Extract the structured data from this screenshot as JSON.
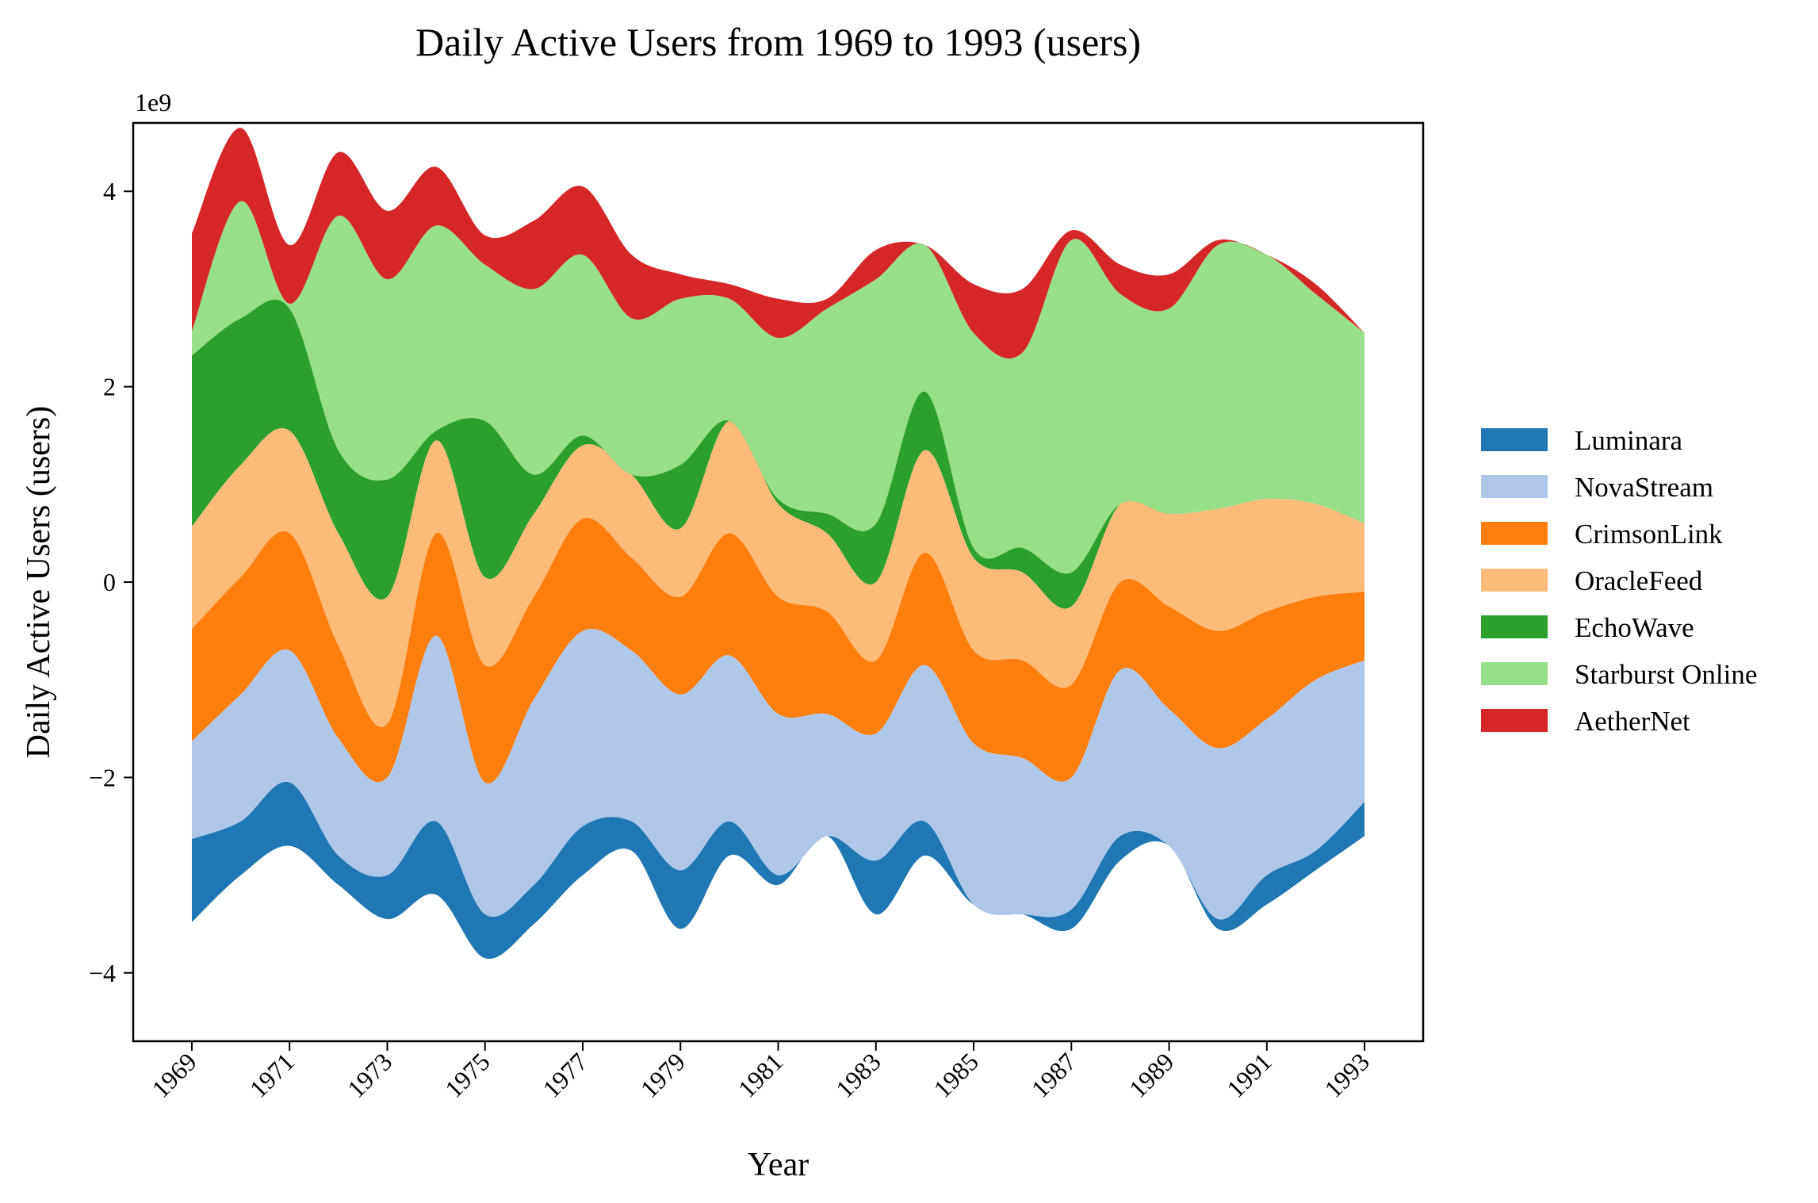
{
  "chart_data": {
    "type": "area",
    "subtype": "streamgraph",
    "title": "Daily Active Users from 1969 to 1993 (users)",
    "xlabel": "Year",
    "ylabel": "Daily Active Users (users)",
    "y_offset_label": "1e9",
    "xlim": [
      1967.8,
      1994.2
    ],
    "ylim": [
      -4.7,
      4.7
    ],
    "x": [
      1969,
      1970,
      1971,
      1972,
      1973,
      1974,
      1975,
      1976,
      1977,
      1978,
      1979,
      1980,
      1981,
      1982,
      1983,
      1984,
      1985,
      1986,
      1987,
      1988,
      1989,
      1990,
      1991,
      1992,
      1993
    ],
    "x_ticks": [
      1969,
      1971,
      1973,
      1975,
      1977,
      1979,
      1981,
      1983,
      1985,
      1987,
      1989,
      1991,
      1993
    ],
    "x_tick_labels": [
      "1969",
      "1971",
      "1973",
      "1975",
      "1977",
      "1979",
      "1981",
      "1983",
      "1985",
      "1987",
      "1989",
      "1991",
      "1993"
    ],
    "y_ticks": [
      -4,
      -2,
      0,
      2,
      4
    ],
    "y_tick_labels": [
      "−4",
      "−2",
      "0",
      "2",
      "4"
    ],
    "baseline": [
      -3.48,
      -3.0,
      -2.7,
      -3.1,
      -3.45,
      -3.2,
      -3.85,
      -3.5,
      -3.0,
      -2.75,
      -3.55,
      -2.8,
      -3.1,
      -2.6,
      -3.4,
      -2.8,
      -3.3,
      -3.4,
      -3.55,
      -2.85,
      -2.7,
      -3.55,
      -3.3,
      -2.95,
      -2.6
    ],
    "series": [
      {
        "name": "Luminara",
        "color": "#1f77b4",
        "values": [
          0.85,
          0.55,
          0.65,
          0.3,
          0.45,
          0.75,
          0.45,
          0.4,
          0.5,
          0.3,
          0.6,
          0.35,
          0.1,
          0.0,
          0.55,
          0.35,
          0.0,
          0.0,
          0.2,
          0.25,
          0.0,
          0.1,
          0.3,
          0.2,
          0.35
        ]
      },
      {
        "name": "NovaStream",
        "color": "#aec7e8",
        "values": [
          1.0,
          1.3,
          1.35,
          1.2,
          1.0,
          1.9,
          1.35,
          1.9,
          2.0,
          1.75,
          1.8,
          1.7,
          1.65,
          1.25,
          1.3,
          1.6,
          1.65,
          1.6,
          1.35,
          1.7,
          1.4,
          1.75,
          1.6,
          1.75,
          1.45
        ]
      },
      {
        "name": "CrimsonLink",
        "color": "#ff7f0e",
        "values": [
          1.15,
          1.2,
          1.2,
          0.95,
          0.55,
          1.05,
          1.2,
          1.05,
          1.15,
          0.95,
          1.0,
          1.25,
          1.2,
          1.05,
          0.75,
          1.15,
          0.95,
          1.0,
          0.95,
          0.9,
          1.05,
          1.2,
          1.1,
          0.85,
          0.7
        ]
      },
      {
        "name": "OracleFeed",
        "color": "#ffbb78",
        "values": [
          1.05,
          1.15,
          1.05,
          1.15,
          1.3,
          0.95,
          0.9,
          0.85,
          0.75,
          0.85,
          0.7,
          1.15,
          0.95,
          0.8,
          0.8,
          1.05,
          0.95,
          0.9,
          0.8,
          0.8,
          0.95,
          1.25,
          1.15,
          0.95,
          0.7
        ]
      },
      {
        "name": "EchoWave",
        "color": "#2ca02c",
        "values": [
          1.75,
          1.5,
          1.25,
          0.85,
          1.2,
          0.1,
          1.6,
          0.4,
          0.1,
          0.0,
          0.65,
          0.0,
          0.05,
          0.2,
          0.6,
          0.6,
          0.1,
          0.25,
          0.35,
          0.0,
          0.0,
          0.0,
          0.0,
          0.0,
          0.0
        ]
      },
      {
        "name": "Starburst Online",
        "color": "#98df8a",
        "values": [
          0.25,
          1.2,
          0.05,
          2.4,
          2.05,
          2.1,
          1.6,
          1.9,
          1.85,
          1.6,
          1.7,
          1.25,
          1.65,
          2.1,
          2.5,
          1.5,
          2.2,
          2.0,
          3.4,
          2.15,
          2.1,
          2.7,
          2.5,
          2.15,
          1.95
        ]
      },
      {
        "name": "AetherNet",
        "color": "#d62728",
        "values": [
          1.0,
          0.75,
          0.6,
          0.65,
          0.7,
          0.6,
          0.3,
          0.7,
          0.7,
          0.65,
          0.25,
          0.15,
          0.4,
          0.1,
          0.3,
          0.0,
          0.5,
          0.65,
          0.1,
          0.3,
          0.35,
          0.05,
          0.0,
          0.1,
          0.0
        ]
      }
    ],
    "legend_position": "center-right",
    "grid": false
  }
}
